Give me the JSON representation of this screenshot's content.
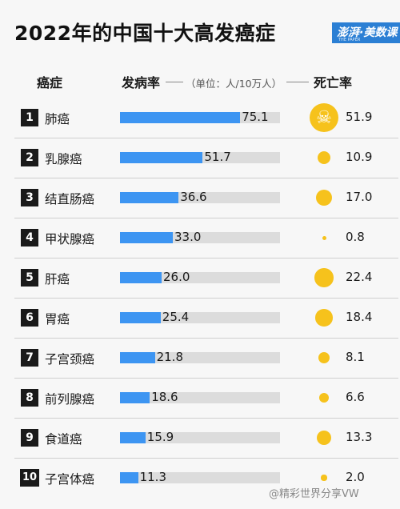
{
  "header": {
    "title": "2022年的中国十大高发癌症",
    "brand": "澎湃·美数课",
    "brand_sub": "THE PAPER",
    "col_cancer": "癌症",
    "col_incidence": "发病率",
    "unit": "（单位：人/10万人）",
    "col_mortality": "死亡率"
  },
  "footer": {
    "watermark": "@精彩世界分享VW"
  },
  "colors": {
    "bar": "#3d95f2",
    "track": "#dcdcdc",
    "dot": "#f6c21c",
    "badge": "#1a1a1a"
  },
  "icons": {
    "skull": "skull-crossbones-icon"
  },
  "chart_data": {
    "type": "bar",
    "title": "2022年的中国十大高发癌症",
    "unit": "人/10万人",
    "xlim": [
      0,
      100
    ],
    "ranks": [
      "1",
      "2",
      "3",
      "4",
      "5",
      "6",
      "7",
      "8",
      "9",
      "10"
    ],
    "categories": [
      "肺癌",
      "乳腺癌",
      "结直肠癌",
      "甲状腺癌",
      "肝癌",
      "胃癌",
      "子宫颈癌",
      "前列腺癌",
      "食道癌",
      "子宫体癌"
    ],
    "series": [
      {
        "name": "发病率",
        "values": [
          75.1,
          51.7,
          36.6,
          33.0,
          26.0,
          25.4,
          21.8,
          18.6,
          15.9,
          11.3
        ]
      },
      {
        "name": "死亡率",
        "values": [
          51.9,
          10.9,
          17.0,
          0.8,
          22.4,
          18.4,
          8.1,
          6.6,
          13.3,
          2.0
        ]
      }
    ],
    "incidence_labels": [
      "75.1",
      "51.7",
      "36.6",
      "33.0",
      "26.0",
      "25.4",
      "21.8",
      "18.6",
      "15.9",
      "11.3"
    ],
    "mortality_labels": [
      "51.9",
      "10.9",
      "17.0",
      "0.8",
      "22.4",
      "18.4",
      "8.1",
      "6.6",
      "13.3",
      "2.0"
    ]
  }
}
